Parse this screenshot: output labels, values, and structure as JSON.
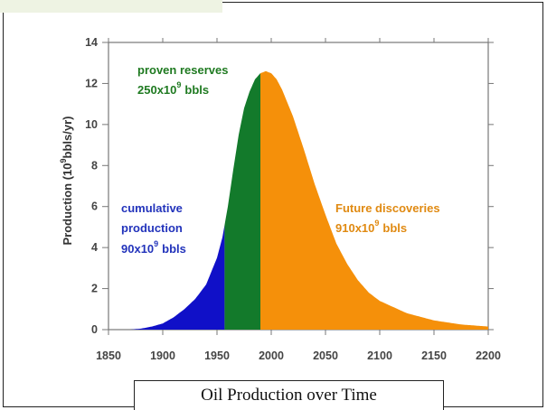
{
  "caption": "Oil Production over Time",
  "chart_data": {
    "type": "area",
    "title": "",
    "xlabel": "",
    "ylabel": "Production (10 9 bbls/yr)",
    "xlim": [
      1850,
      2200
    ],
    "ylim": [
      0,
      14
    ],
    "x_ticks": [
      1850,
      1900,
      1950,
      2000,
      2050,
      2100,
      2150,
      2200
    ],
    "y_ticks": [
      0,
      2,
      4,
      6,
      8,
      10,
      12,
      14
    ],
    "curve": {
      "x": [
        1870,
        1880,
        1890,
        1900,
        1910,
        1920,
        1930,
        1940,
        1950,
        1955,
        1960,
        1965,
        1970,
        1975,
        1980,
        1985,
        1990,
        1995,
        2000,
        2005,
        2010,
        2020,
        2030,
        2040,
        2050,
        2060,
        2070,
        2080,
        2090,
        2100,
        2125,
        2150,
        2175,
        2200
      ],
      "y": [
        0.0,
        0.05,
        0.15,
        0.3,
        0.6,
        1.0,
        1.5,
        2.2,
        3.5,
        4.5,
        6.0,
        7.8,
        9.5,
        10.8,
        11.6,
        12.2,
        12.5,
        12.6,
        12.5,
        12.2,
        11.7,
        10.4,
        8.8,
        7.1,
        5.6,
        4.2,
        3.2,
        2.4,
        1.8,
        1.4,
        0.8,
        0.45,
        0.25,
        0.15
      ]
    },
    "regions": [
      {
        "name": "cumulative production",
        "from": 1850,
        "to": 1957,
        "color": "#1010c8"
      },
      {
        "name": "proven reserves",
        "from": 1957,
        "to": 1990,
        "color": "#137a2b"
      },
      {
        "name": "Future discoveries",
        "from": 1990,
        "to": 2200,
        "color": "#f5900a"
      }
    ],
    "annotations": [
      {
        "id": "reserves",
        "lines": [
          "proven reserves",
          "250x10",
          "9",
          "bbls"
        ],
        "color": "#1f7a21"
      },
      {
        "id": "cumulative",
        "lines": [
          "cumulative",
          "production",
          "90x10",
          "9",
          "bbls"
        ],
        "color": "#2233bb"
      },
      {
        "id": "future",
        "lines": [
          "Future discoveries",
          "910x10",
          "9",
          "bbls"
        ],
        "color": "#e08a12"
      }
    ]
  }
}
